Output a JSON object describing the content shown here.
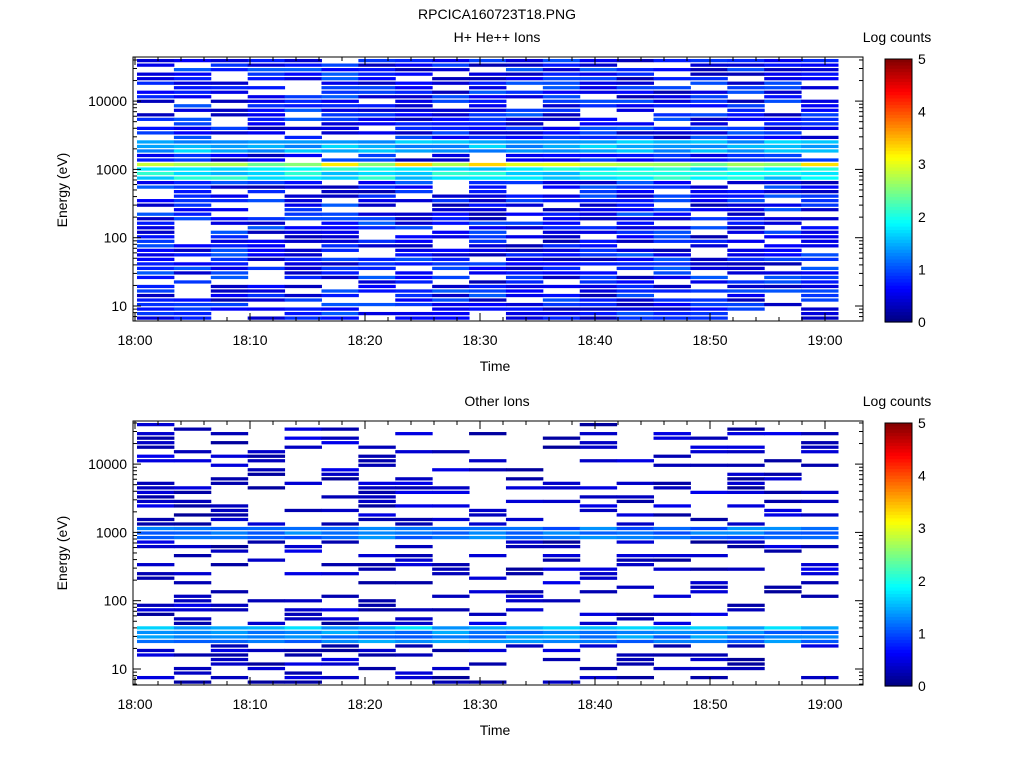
{
  "figure": {
    "title": "RPCICA160723T18.PNG"
  },
  "colormap": [
    "#00007f",
    "#0000ff",
    "#007fff",
    "#00ffff",
    "#7fff7f",
    "#ffff00",
    "#ff7f00",
    "#ff0000",
    "#7f0000"
  ],
  "chart_data": [
    {
      "type": "heatmap",
      "title": "H+ He++ Ions",
      "xlabel": "Time",
      "ylabel": "Energy (eV)",
      "xticks": [
        "18:00",
        "18:10",
        "18:20",
        "18:30",
        "18:40",
        "18:50",
        "19:00"
      ],
      "yticks": [
        "10",
        "100",
        "1000",
        "10000"
      ],
      "yscale": "log",
      "colorbar": {
        "label": "Log counts",
        "range": [
          0,
          5
        ],
        "ticks": [
          "0",
          "1",
          "2",
          "3",
          "4",
          "5"
        ]
      },
      "bands_log_counts": [
        {
          "energy_ev": 2000,
          "value": 1.5
        },
        {
          "energy_ev": 1000,
          "value": 2.9
        },
        {
          "energy_ev": 850,
          "value": 1.9
        }
      ],
      "background": {
        "min_energy_ev": 6,
        "max_energy_ev": 45000,
        "value": 0.6
      }
    },
    {
      "type": "heatmap",
      "title": "Other Ions",
      "xlabel": "Time",
      "ylabel": "Energy (eV)",
      "xticks": [
        "18:00",
        "18:10",
        "18:20",
        "18:30",
        "18:40",
        "18:50",
        "19:00"
      ],
      "yticks": [
        "10",
        "100",
        "1000",
        "10000"
      ],
      "yscale": "log",
      "colorbar": {
        "label": "Log counts",
        "range": [
          0,
          5
        ],
        "ticks": [
          "0",
          "1",
          "2",
          "3",
          "4",
          "5"
        ]
      },
      "bands_log_counts": [
        {
          "energy_ev": 1000,
          "value": 1.2
        },
        {
          "energy_ev": 35,
          "value": 1.6
        },
        {
          "energy_ev": 28,
          "value": 1.3
        }
      ],
      "background": {
        "min_energy_ev": 6,
        "max_energy_ev": 45000,
        "value": 0.3
      }
    }
  ]
}
